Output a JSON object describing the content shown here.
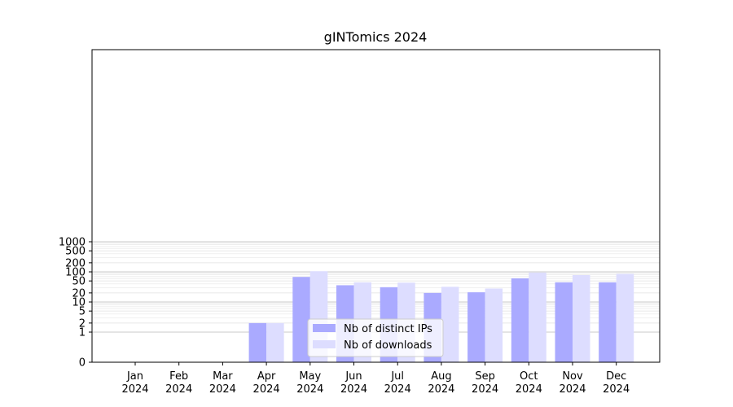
{
  "chart_data": {
    "type": "bar",
    "title": "gINTomics 2024",
    "xlabel": "",
    "ylabel": "",
    "y_scale": "symlog",
    "ylim": [
      0,
      1200
    ],
    "y_ticks": [
      0,
      1,
      2,
      5,
      10,
      20,
      50,
      100,
      200,
      500,
      1000
    ],
    "grid": "horizontal",
    "legend_position": "lower center",
    "categories": [
      [
        "Jan",
        "2024"
      ],
      [
        "Feb",
        "2024"
      ],
      [
        "Mar",
        "2024"
      ],
      [
        "Apr",
        "2024"
      ],
      [
        "May",
        "2024"
      ],
      [
        "Jun",
        "2024"
      ],
      [
        "Jul",
        "2024"
      ],
      [
        "Aug",
        "2024"
      ],
      [
        "Sep",
        "2024"
      ],
      [
        "Oct",
        "2024"
      ],
      [
        "Nov",
        "2024"
      ],
      [
        "Dec",
        "2024"
      ]
    ],
    "series": [
      {
        "name": "Nb of distinct IPs",
        "color": "#aaaaff",
        "values": [
          0,
          0,
          0,
          2,
          68,
          36,
          31,
          20,
          21,
          61,
          45,
          45
        ]
      },
      {
        "name": "Nb of downloads",
        "color": "#ddddff",
        "values": [
          0,
          0,
          0,
          2,
          105,
          45,
          44,
          32,
          28,
          95,
          78,
          86
        ]
      }
    ]
  }
}
